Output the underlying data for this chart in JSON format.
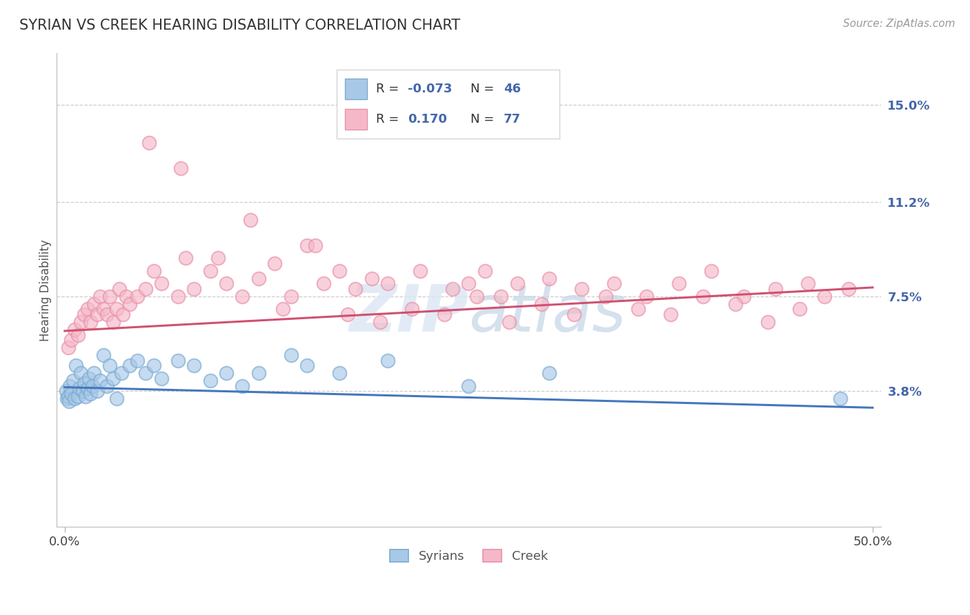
{
  "title": "SYRIAN VS CREEK HEARING DISABILITY CORRELATION CHART",
  "source": "Source: ZipAtlas.com",
  "ylabel": "Hearing Disability",
  "xlim": [
    -0.5,
    50.5
  ],
  "ylim": [
    -1.5,
    17.0
  ],
  "yticks": [
    3.8,
    7.5,
    11.2,
    15.0
  ],
  "ytick_labels": [
    "3.8%",
    "7.5%",
    "11.2%",
    "15.0%"
  ],
  "xticks": [
    0.0,
    50.0
  ],
  "xtick_labels": [
    "0.0%",
    "50.0%"
  ],
  "background_color": "#ffffff",
  "grid_color": "#cccccc",
  "syrian_color": "#a8c8e8",
  "creek_color": "#f5b8c8",
  "syrian_edge_color": "#7aaad0",
  "creek_edge_color": "#e890a8",
  "syrian_line_color": "#4477bb",
  "creek_line_color": "#d05070",
  "legend_R_syrian": "-0.073",
  "legend_N_syrian": "46",
  "legend_R_creek": "0.170",
  "legend_N_creek": "77",
  "legend_label_syrian": "Syrians",
  "legend_label_creek": "Creek",
  "text_color_blue": "#4466aa",
  "text_color_dark": "#333333",
  "syrian_trend_x0": 0.0,
  "syrian_trend_y0": 3.95,
  "syrian_trend_x1": 50.0,
  "syrian_trend_y1": 3.15,
  "creek_trend_x0": 0.0,
  "creek_trend_y0": 6.15,
  "creek_trend_x1": 50.0,
  "creek_trend_y1": 7.85,
  "syrian_x": [
    0.1,
    0.15,
    0.2,
    0.25,
    0.3,
    0.4,
    0.5,
    0.6,
    0.7,
    0.8,
    0.9,
    1.0,
    1.1,
    1.2,
    1.3,
    1.4,
    1.5,
    1.6,
    1.7,
    1.8,
    2.0,
    2.2,
    2.4,
    2.6,
    2.8,
    3.0,
    3.2,
    3.5,
    4.0,
    4.5,
    5.0,
    5.5,
    6.0,
    7.0,
    8.0,
    9.0,
    10.0,
    11.0,
    12.0,
    14.0,
    15.0,
    17.0,
    20.0,
    25.0,
    30.0,
    48.0
  ],
  "syrian_y": [
    3.8,
    3.5,
    3.6,
    3.4,
    4.0,
    3.7,
    4.2,
    3.5,
    4.8,
    3.6,
    3.9,
    4.5,
    3.8,
    4.1,
    3.6,
    3.9,
    4.3,
    3.7,
    4.0,
    4.5,
    3.8,
    4.2,
    5.2,
    4.0,
    4.8,
    4.3,
    3.5,
    4.5,
    4.8,
    5.0,
    4.5,
    4.8,
    4.3,
    5.0,
    4.8,
    4.2,
    4.5,
    4.0,
    4.5,
    5.2,
    4.8,
    4.5,
    5.0,
    4.0,
    4.5,
    3.5
  ],
  "creek_x": [
    0.2,
    0.4,
    0.6,
    0.8,
    1.0,
    1.2,
    1.4,
    1.6,
    1.8,
    2.0,
    2.2,
    2.4,
    2.6,
    2.8,
    3.0,
    3.2,
    3.4,
    3.6,
    3.8,
    4.0,
    4.5,
    5.0,
    5.5,
    6.0,
    7.0,
    7.5,
    8.0,
    9.0,
    10.0,
    11.0,
    12.0,
    13.0,
    14.0,
    15.0,
    16.0,
    17.0,
    18.0,
    19.0,
    20.0,
    22.0,
    24.0,
    25.0,
    26.0,
    27.0,
    28.0,
    30.0,
    32.0,
    34.0,
    36.0,
    38.0,
    40.0,
    42.0,
    44.0,
    46.0,
    5.2,
    7.2,
    9.5,
    11.5,
    13.5,
    15.5,
    17.5,
    19.5,
    21.5,
    23.5,
    25.5,
    27.5,
    29.5,
    31.5,
    33.5,
    35.5,
    37.5,
    39.5,
    41.5,
    43.5,
    45.5,
    47.0,
    48.5
  ],
  "creek_y": [
    5.5,
    5.8,
    6.2,
    6.0,
    6.5,
    6.8,
    7.0,
    6.5,
    7.2,
    6.8,
    7.5,
    7.0,
    6.8,
    7.5,
    6.5,
    7.0,
    7.8,
    6.8,
    7.5,
    7.2,
    7.5,
    7.8,
    8.5,
    8.0,
    7.5,
    9.0,
    7.8,
    8.5,
    8.0,
    7.5,
    8.2,
    8.8,
    7.5,
    9.5,
    8.0,
    8.5,
    7.8,
    8.2,
    8.0,
    8.5,
    7.8,
    8.0,
    8.5,
    7.5,
    8.0,
    8.2,
    7.8,
    8.0,
    7.5,
    8.0,
    8.5,
    7.5,
    7.8,
    8.0,
    13.5,
    12.5,
    9.0,
    10.5,
    7.0,
    9.5,
    6.8,
    6.5,
    7.0,
    6.8,
    7.5,
    6.5,
    7.2,
    6.8,
    7.5,
    7.0,
    6.8,
    7.5,
    7.2,
    6.5,
    7.0,
    7.5,
    7.8
  ]
}
